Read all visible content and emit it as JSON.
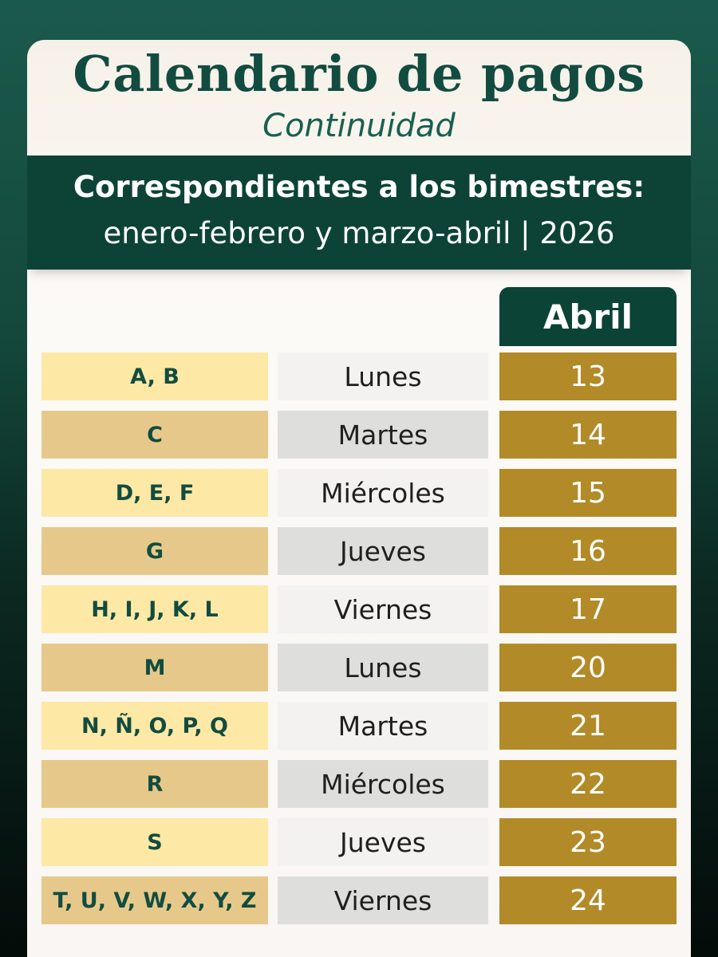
{
  "title": "Calendario de pagos",
  "subtitle": "Continuidad",
  "banner": {
    "line1": "Correspondientes a los bimestres:",
    "line2": "enero-febrero y marzo-abril | 2026"
  },
  "month": "Abril",
  "colors": {
    "background": "#14483c",
    "band": "#0c4336",
    "gold": "#b28a28",
    "letters_light": "#fde8a6",
    "letters_dark": "#e6c98a",
    "title_green": "#124c40"
  },
  "rows": [
    {
      "letters": "A, B",
      "day": "Lunes",
      "date": "13"
    },
    {
      "letters": "C",
      "day": "Martes",
      "date": "14"
    },
    {
      "letters": "D, E, F",
      "day": "Miércoles",
      "date": "15"
    },
    {
      "letters": "G",
      "day": "Jueves",
      "date": "16"
    },
    {
      "letters": "H, I, J, K, L",
      "day": "Viernes",
      "date": "17"
    },
    {
      "letters": "M",
      "day": "Lunes",
      "date": "20"
    },
    {
      "letters": "N, Ñ, O, P, Q",
      "day": "Martes",
      "date": "21"
    },
    {
      "letters": "R",
      "day": "Miércoles",
      "date": "22"
    },
    {
      "letters": "S",
      "day": "Jueves",
      "date": "23"
    },
    {
      "letters": "T, U, V, W, X, Y, Z",
      "day": "Viernes",
      "date": "24"
    }
  ]
}
